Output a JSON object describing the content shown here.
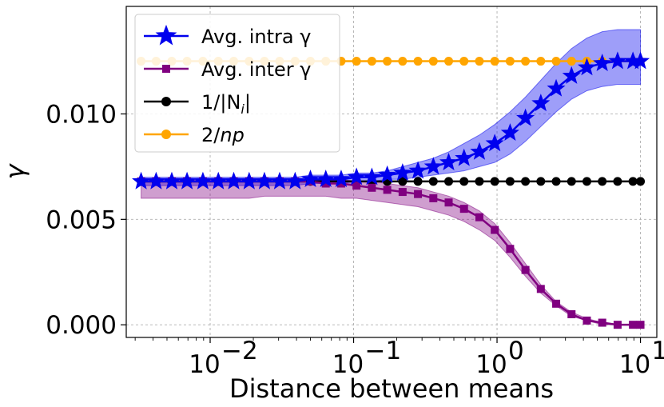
{
  "chart_data": {
    "type": "line",
    "xscale": "log",
    "xlim": [
      0.0026,
      13
    ],
    "ylim": [
      -0.0006,
      0.0151
    ],
    "grid": true,
    "legend_placement": "upper-left",
    "xlabel": "Distance between means",
    "ylabel": "γ",
    "xtick_values": [
      0.01,
      0.1,
      1,
      10
    ],
    "xtick_labels": [
      "10",
      "10",
      "10",
      "10"
    ],
    "xtick_exponents": [
      "−2",
      "−1",
      "0",
      "1"
    ],
    "ytick_values": [
      0.0,
      0.005,
      0.01
    ],
    "ytick_labels": [
      "0.000",
      "0.005",
      "0.010"
    ],
    "x": [
      0.0033,
      0.0042,
      0.0054,
      0.0069,
      0.0089,
      0.0114,
      0.0146,
      0.0187,
      0.0239,
      0.0305,
      0.0391,
      0.05,
      0.064,
      0.0819,
      0.1048,
      0.1341,
      0.1716,
      0.2196,
      0.281,
      0.3596,
      0.4601,
      0.5887,
      0.7533,
      0.9639,
      1.2334,
      1.5782,
      2.0194,
      2.5839,
      3.3062,
      4.2305,
      5.4131,
      6.9264,
      8.8627,
      10.0
    ],
    "series": [
      {
        "name": "Avg. intra γ",
        "color": "#0000ee",
        "marker": "star",
        "values": [
          0.0068,
          0.0068,
          0.0068,
          0.0068,
          0.0068,
          0.0068,
          0.0068,
          0.0068,
          0.0068,
          0.0068,
          0.0068,
          0.0069,
          0.0069,
          0.0069,
          0.007,
          0.007,
          0.0071,
          0.0072,
          0.0073,
          0.0075,
          0.0077,
          0.0079,
          0.0082,
          0.0086,
          0.0091,
          0.0098,
          0.0105,
          0.0112,
          0.0118,
          0.0122,
          0.0124,
          0.0125,
          0.0125,
          0.0125
        ],
        "band_upper": [
          0.007,
          0.007,
          0.007,
          0.007,
          0.007,
          0.007,
          0.007,
          0.007,
          0.007,
          0.007,
          0.007,
          0.0071,
          0.0071,
          0.0071,
          0.0072,
          0.0072,
          0.0073,
          0.0075,
          0.0077,
          0.0079,
          0.0082,
          0.0086,
          0.009,
          0.0095,
          0.0101,
          0.0108,
          0.0116,
          0.0124,
          0.0131,
          0.0136,
          0.0139,
          0.014,
          0.014,
          0.014
        ],
        "band_lower": [
          0.0066,
          0.0066,
          0.0066,
          0.0066,
          0.0066,
          0.0066,
          0.0066,
          0.0066,
          0.0066,
          0.0066,
          0.0066,
          0.0067,
          0.0067,
          0.0067,
          0.0068,
          0.0068,
          0.0069,
          0.0069,
          0.007,
          0.0071,
          0.0072,
          0.0073,
          0.0075,
          0.0077,
          0.0081,
          0.0087,
          0.0094,
          0.0101,
          0.0107,
          0.0111,
          0.0113,
          0.0114,
          0.0114,
          0.0114
        ]
      },
      {
        "name": "Avg. inter γ",
        "color": "#800080",
        "marker": "square",
        "values": [
          0.0068,
          0.0068,
          0.0068,
          0.0068,
          0.0068,
          0.0068,
          0.0068,
          0.0068,
          0.0068,
          0.0068,
          0.0068,
          0.0068,
          0.0067,
          0.0067,
          0.0066,
          0.0065,
          0.0064,
          0.0063,
          0.0062,
          0.006,
          0.0058,
          0.0055,
          0.0051,
          0.0045,
          0.0036,
          0.0026,
          0.0017,
          0.001,
          0.0005,
          0.0002,
          0.0001,
          0.0,
          0.0,
          0.0
        ],
        "band_upper": [
          0.0069,
          0.0069,
          0.0069,
          0.0069,
          0.0069,
          0.0069,
          0.0069,
          0.0069,
          0.0069,
          0.0069,
          0.0069,
          0.0069,
          0.0069,
          0.0069,
          0.0068,
          0.0068,
          0.0067,
          0.0066,
          0.0065,
          0.0063,
          0.0061,
          0.0058,
          0.0054,
          0.0048,
          0.0039,
          0.0029,
          0.0019,
          0.0011,
          0.0006,
          0.0003,
          0.0001,
          0.0,
          0.0,
          0.0
        ],
        "band_lower": [
          0.006,
          0.006,
          0.006,
          0.006,
          0.006,
          0.006,
          0.006,
          0.006,
          0.0061,
          0.0061,
          0.0061,
          0.0061,
          0.0061,
          0.006,
          0.006,
          0.0059,
          0.0058,
          0.0057,
          0.0056,
          0.0054,
          0.0052,
          0.0049,
          0.0045,
          0.004,
          0.0032,
          0.0023,
          0.0015,
          0.0009,
          0.0004,
          0.0002,
          0.0,
          0.0,
          0.0,
          0.0
        ]
      },
      {
        "name": "1/|N_i|",
        "color": "#000000",
        "marker": "circle",
        "values": [
          0.0068,
          0.0068,
          0.0068,
          0.0068,
          0.0068,
          0.0068,
          0.0068,
          0.0068,
          0.0068,
          0.0068,
          0.0068,
          0.0068,
          0.0068,
          0.0068,
          0.0068,
          0.0068,
          0.0068,
          0.0068,
          0.0068,
          0.0068,
          0.0068,
          0.0068,
          0.0068,
          0.0068,
          0.0068,
          0.0068,
          0.0068,
          0.0068,
          0.0068,
          0.0068,
          0.0068,
          0.0068,
          0.0068,
          0.0068
        ]
      },
      {
        "name": "2/np",
        "color": "#ffa500",
        "marker": "circle",
        "values": [
          0.0125,
          0.0125,
          0.0125,
          0.0125,
          0.0125,
          0.0125,
          0.0125,
          0.0125,
          0.0125,
          0.0125,
          0.0125,
          0.0125,
          0.0125,
          0.0125,
          0.0125,
          0.0125,
          0.0125,
          0.0125,
          0.0125,
          0.0125,
          0.0125,
          0.0125,
          0.0125,
          0.0125,
          0.0125,
          0.0125,
          0.0125,
          0.0125,
          0.0125,
          0.0125,
          0.0125,
          0.0125,
          0.0125,
          0.0125
        ]
      }
    ],
    "legend": {
      "entries": [
        {
          "label": "Avg. intra γ"
        },
        {
          "label": "Avg. inter γ"
        },
        {
          "label": "1/|N",
          "subscript": "i",
          "suffix": "|"
        },
        {
          "label": "2/",
          "italic": "np"
        }
      ]
    }
  }
}
